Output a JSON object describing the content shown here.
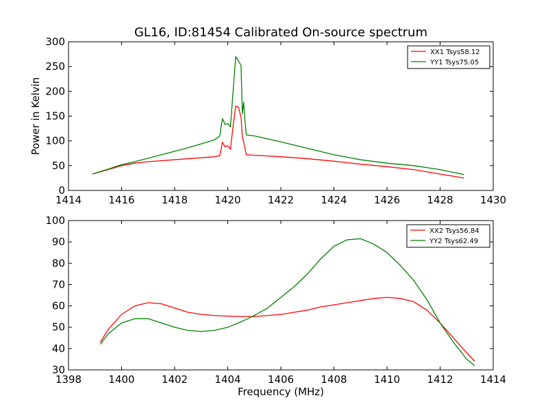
{
  "figure": {
    "title": "GL16, ID:81454 Calibrated On-source spectrum",
    "xlabel": "Frequency (MHz)"
  },
  "chart_data": [
    {
      "type": "line",
      "title": "GL16, ID:81454 Calibrated On-source spectrum",
      "xlabel": "",
      "ylabel": "Power in Kelvin",
      "xlim": [
        1414,
        1430
      ],
      "ylim": [
        0,
        300
      ],
      "xticks": [
        1414,
        1416,
        1418,
        1420,
        1422,
        1424,
        1426,
        1428,
        1430
      ],
      "yticks": [
        0,
        50,
        100,
        150,
        200,
        250,
        300
      ],
      "grid": false,
      "legend": "top-right",
      "series": [
        {
          "name": "XX1 Tsys58.12",
          "color": "#ff0000",
          "x": [
            1414.9,
            1415.5,
            1416,
            1416.5,
            1417,
            1417.5,
            1418,
            1418.5,
            1419,
            1419.5,
            1419.7,
            1419.8,
            1419.9,
            1420.0,
            1420.1,
            1420.2,
            1420.3,
            1420.4,
            1420.5,
            1420.55,
            1420.6,
            1420.7,
            1421,
            1422,
            1423,
            1424,
            1425,
            1426,
            1427,
            1428,
            1428.9
          ],
          "y": [
            33,
            42,
            50,
            55,
            58,
            60,
            62,
            64,
            66,
            68,
            70,
            97,
            88,
            90,
            83,
            130,
            170,
            168,
            148,
            108,
            98,
            72,
            71,
            68,
            64,
            59,
            53,
            48,
            42,
            33,
            25
          ]
        },
        {
          "name": "YY1 Tsys75.05",
          "color": "#008000",
          "x": [
            1414.9,
            1415.5,
            1416,
            1416.5,
            1417,
            1417.5,
            1418,
            1418.5,
            1419,
            1419.5,
            1419.7,
            1419.8,
            1419.9,
            1420.0,
            1420.1,
            1420.2,
            1420.3,
            1420.4,
            1420.5,
            1420.55,
            1420.6,
            1420.65,
            1420.7,
            1421,
            1422,
            1423,
            1424,
            1425,
            1426,
            1427,
            1428,
            1428.9
          ],
          "y": [
            33,
            43,
            52,
            58,
            65,
            72,
            79,
            86,
            94,
            102,
            110,
            145,
            133,
            135,
            128,
            200,
            270,
            262,
            252,
            155,
            178,
            140,
            112,
            110,
            98,
            85,
            72,
            62,
            55,
            50,
            42,
            32
          ]
        }
      ]
    },
    {
      "type": "line",
      "title": "",
      "xlabel": "Frequency (MHz)",
      "ylabel": "",
      "xlim": [
        1398,
        1414
      ],
      "ylim": [
        30,
        100
      ],
      "xticks": [
        1398,
        1400,
        1402,
        1404,
        1406,
        1408,
        1410,
        1412,
        1414
      ],
      "yticks": [
        30,
        40,
        50,
        60,
        70,
        80,
        90,
        100
      ],
      "grid": false,
      "legend": "top-right",
      "series": [
        {
          "name": "XX2 Tsys56.84",
          "color": "#ff0000",
          "x": [
            1399.2,
            1399.5,
            1400,
            1400.5,
            1401,
            1401.5,
            1402,
            1402.5,
            1403,
            1403.5,
            1404,
            1404.5,
            1405,
            1405.5,
            1406,
            1406.5,
            1407,
            1407.5,
            1408,
            1408.5,
            1409,
            1409.5,
            1410,
            1410.5,
            1411,
            1411.5,
            1412,
            1412.5,
            1413,
            1413.3
          ],
          "y": [
            43,
            49,
            56,
            60,
            61.5,
            61,
            59,
            57,
            56,
            55.5,
            55.2,
            55,
            55,
            55.5,
            56,
            57,
            58,
            59.5,
            60.5,
            61.5,
            62.5,
            63.5,
            64,
            63.5,
            62,
            58,
            52,
            45,
            38,
            34
          ]
        },
        {
          "name": "YY2 Tsys62.49",
          "color": "#008000",
          "x": [
            1399.2,
            1399.5,
            1400,
            1400.5,
            1401,
            1401.5,
            1402,
            1402.5,
            1403,
            1403.5,
            1404,
            1404.5,
            1405,
            1405.5,
            1406,
            1406.5,
            1407,
            1407.5,
            1408,
            1408.5,
            1409,
            1409.5,
            1410,
            1410.5,
            1411,
            1411.5,
            1412,
            1412.5,
            1413,
            1413.3
          ],
          "y": [
            42,
            47,
            52,
            54,
            54,
            52,
            50,
            48.5,
            48,
            48.5,
            50,
            52.5,
            55.5,
            59,
            64,
            69,
            75,
            82,
            88,
            91,
            91.5,
            89,
            85,
            79,
            72,
            63,
            52,
            43,
            35,
            32
          ]
        }
      ]
    }
  ]
}
